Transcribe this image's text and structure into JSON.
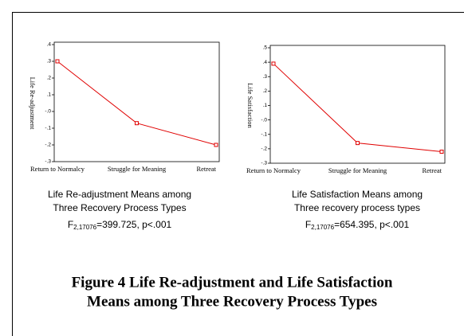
{
  "chart_data": [
    {
      "type": "line",
      "y_label": "Life Re-adjustment",
      "categories": [
        "Return to Normalcy",
        "Struggle for Meaning",
        "Retreat"
      ],
      "series": [
        {
          "color": "#e00000",
          "values": [
            0.3,
            -0.07,
            -0.2
          ]
        }
      ],
      "ylim": [
        -0.3,
        0.4
      ],
      "yticks": [
        {
          "value": -0.3,
          "label": "-.3"
        },
        {
          "value": -0.2,
          "label": "-.2"
        },
        {
          "value": -0.1,
          "label": "-.1"
        },
        {
          "value": 0,
          "label": "-.0"
        },
        {
          "value": 0.1,
          "label": ".1"
        },
        {
          "value": 0.2,
          "label": ".2"
        },
        {
          "value": 0.3,
          "label": ".3"
        },
        {
          "value": 0.4,
          "label": ".4"
        }
      ],
      "caption": [
        "Life Re-adjustment Means among",
        "Three Recovery Process Types"
      ],
      "statistic": {
        "symbol": "F",
        "subscript": "2,17076",
        "text": "=399.725, p<.001"
      }
    },
    {
      "type": "line",
      "y_label": "Life Satisfaction",
      "categories": [
        "Return to Normalcy",
        "Struggle for Meaning",
        "Retreat"
      ],
      "series": [
        {
          "color": "#e00000",
          "values": [
            0.39,
            -0.16,
            -0.22
          ]
        }
      ],
      "ylim": [
        -0.3,
        0.5
      ],
      "yticks": [
        {
          "value": -0.3,
          "label": "-.3"
        },
        {
          "value": -0.2,
          "label": "-.2"
        },
        {
          "value": -0.1,
          "label": "-.1"
        },
        {
          "value": 0,
          "label": "-.0"
        },
        {
          "value": 0.1,
          "label": ".1"
        },
        {
          "value": 0.2,
          "label": ".2"
        },
        {
          "value": 0.3,
          "label": ".3"
        },
        {
          "value": 0.4,
          "label": ".4"
        },
        {
          "value": 0.5,
          "label": ".5"
        }
      ],
      "caption": [
        "Life Satisfaction Means among",
        "Three recovery process types"
      ],
      "statistic": {
        "symbol": "F",
        "subscript": "2,17076",
        "text": "=654.395, p<.001"
      }
    }
  ],
  "figure": {
    "title_lines": [
      "Figure 4 Life Re-adjustment and Life Satisfaction",
      "Means among Three Recovery Process Types"
    ]
  }
}
